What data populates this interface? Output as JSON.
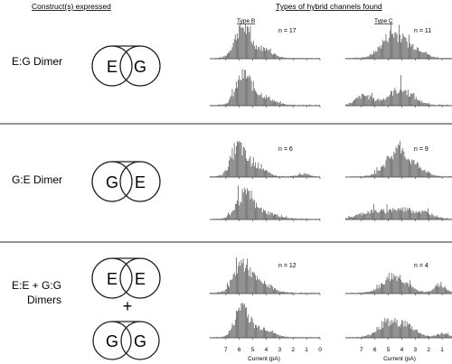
{
  "headers": {
    "construct": "Construct(s) expressed",
    "types": "Types of hybrid channels found",
    "type_b": "Type B",
    "type_c": "Type C"
  },
  "rows": [
    {
      "label_lines": [
        "E:G Dimer"
      ],
      "dimers": [
        [
          "E",
          "G"
        ]
      ],
      "panels": [
        {
          "type": "B",
          "n_label": "n = 17",
          "peaks": [
            {
              "mu": 5.8,
              "sigma": 0.55,
              "amp": 1.0
            },
            {
              "mu": 4.3,
              "sigma": 0.7,
              "amp": 0.3
            }
          ]
        },
        {
          "type": "C",
          "n_label": "n = 11",
          "peaks": [
            {
              "mu": 4.6,
              "sigma": 0.85,
              "amp": 0.8
            },
            {
              "mu": 2.8,
              "sigma": 0.6,
              "amp": 0.25
            }
          ]
        },
        {
          "type": "B",
          "n_label": "",
          "peaks": [
            {
              "mu": 5.7,
              "sigma": 0.55,
              "amp": 0.9
            },
            {
              "mu": 4.4,
              "sigma": 0.8,
              "amp": 0.3
            }
          ]
        },
        {
          "type": "C",
          "n_label": "",
          "peaks": [
            {
              "mu": 6.8,
              "sigma": 0.6,
              "amp": 0.3
            },
            {
              "mu": 4.1,
              "sigma": 0.9,
              "amp": 0.5
            }
          ]
        }
      ]
    },
    {
      "label_lines": [
        "G:E Dimer"
      ],
      "dimers": [
        [
          "G",
          "E"
        ]
      ],
      "panels": [
        {
          "type": "B",
          "n_label": "n = 6",
          "peaks": [
            {
              "mu": 6.1,
              "sigma": 0.5,
              "amp": 1.0
            },
            {
              "mu": 4.7,
              "sigma": 0.6,
              "amp": 0.35
            },
            {
              "mu": 1.2,
              "sigma": 0.4,
              "amp": 0.08
            }
          ]
        },
        {
          "type": "C",
          "n_label": "n = 9",
          "peaks": [
            {
              "mu": 4.3,
              "sigma": 0.85,
              "amp": 0.8
            },
            {
              "mu": 2.7,
              "sigma": 0.6,
              "amp": 0.2
            }
          ]
        },
        {
          "type": "B",
          "n_label": "",
          "peaks": [
            {
              "mu": 5.6,
              "sigma": 0.6,
              "amp": 0.75
            },
            {
              "mu": 4.1,
              "sigma": 0.9,
              "amp": 0.2
            }
          ]
        },
        {
          "type": "C",
          "n_label": "",
          "peaks": [
            {
              "mu": 6.3,
              "sigma": 0.9,
              "amp": 0.22
            },
            {
              "mu": 4.0,
              "sigma": 1.0,
              "amp": 0.3
            },
            {
              "mu": 2.2,
              "sigma": 0.7,
              "amp": 0.15
            }
          ]
        }
      ]
    },
    {
      "label_lines": [
        "E:E + G:G",
        "Dimers"
      ],
      "dimers": [
        [
          "E",
          "E"
        ],
        [
          "G",
          "G"
        ]
      ],
      "plus": "+",
      "panels": [
        {
          "type": "B",
          "n_label": "n = 12",
          "peaks": [
            {
              "mu": 5.8,
              "sigma": 0.6,
              "amp": 0.9
            },
            {
              "mu": 4.4,
              "sigma": 0.8,
              "amp": 0.3
            }
          ]
        },
        {
          "type": "C",
          "n_label": "n = 4",
          "peaks": [
            {
              "mu": 4.5,
              "sigma": 0.85,
              "amp": 0.55
            },
            {
              "mu": 1.2,
              "sigma": 0.45,
              "amp": 0.25
            }
          ]
        },
        {
          "type": "B",
          "n_label": "",
          "peaks": [
            {
              "mu": 5.8,
              "sigma": 0.5,
              "amp": 1.0
            },
            {
              "mu": 4.3,
              "sigma": 0.7,
              "amp": 0.3
            }
          ]
        },
        {
          "type": "C",
          "n_label": "",
          "peaks": [
            {
              "mu": 5.2,
              "sigma": 0.7,
              "amp": 0.35
            },
            {
              "mu": 3.8,
              "sigma": 0.8,
              "amp": 0.4
            },
            {
              "mu": 1.0,
              "sigma": 0.4,
              "amp": 0.12
            }
          ]
        }
      ]
    }
  ],
  "axis": {
    "ticks": [
      "7",
      "6",
      "5",
      "4",
      "3",
      "2",
      "1",
      "0"
    ],
    "xlabel": "Current (pA)"
  }
}
